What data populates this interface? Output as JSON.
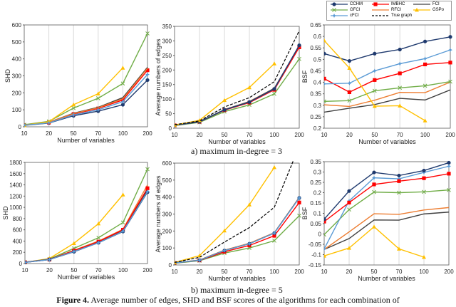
{
  "legend": [
    {
      "name": "CCHM",
      "color": "#1f3a6e",
      "marker": "circle",
      "dash": false
    },
    {
      "name": "IMBHC",
      "color": "#ff0000",
      "marker": "square",
      "dash": false
    },
    {
      "name": "FCI",
      "color": "#404040",
      "marker": "none",
      "dash": false
    },
    {
      "name": "GFCI",
      "color": "#70ad47",
      "marker": "x",
      "dash": false
    },
    {
      "name": "RFCI",
      "color": "#ed7d31",
      "marker": "none",
      "dash": false
    },
    {
      "name": "GSPo",
      "color": "#ffc000",
      "marker": "triangle",
      "dash": false
    },
    {
      "name": "cFCI",
      "color": "#5b9bd5",
      "marker": "star",
      "dash": false
    },
    {
      "name": "True graph",
      "color": "#000000",
      "marker": "none",
      "dash": true
    }
  ],
  "subcaptions": {
    "a": "a)     maximum in-degree = 3",
    "b": "b)     maximum in-degree = 5"
  },
  "caption": {
    "label": "Figure 4.",
    "text": " Average number of edges, SHD and BSF scores of the algorithms for each combination of"
  },
  "chart_data": [
    {
      "type": "line",
      "panel": "a",
      "xlabel": "Number of variables",
      "ylabel": "SHD",
      "categories": [
        "10",
        "20",
        "50",
        "70",
        "100",
        "200"
      ],
      "ylim": [
        0,
        600
      ],
      "yticks": [
        "0",
        "100",
        "200",
        "300",
        "400",
        "500",
        "600"
      ],
      "grid": "vertical",
      "series": [
        {
          "name": "CCHM",
          "values": [
            8,
            22,
            65,
            92,
            130,
            275
          ]
        },
        {
          "name": "IMBHC",
          "values": [
            10,
            25,
            75,
            108,
            158,
            333
          ]
        },
        {
          "name": "FCI",
          "values": [
            10,
            27,
            80,
            115,
            172,
            350
          ]
        },
        {
          "name": "GFCI",
          "values": [
            12,
            32,
            110,
            168,
            255,
            550
          ]
        },
        {
          "name": "RFCI",
          "values": [
            10,
            27,
            78,
            112,
            165,
            345
          ]
        },
        {
          "name": "GSPo",
          "values": [
            8,
            30,
            130,
            195,
            347,
            null
          ]
        },
        {
          "name": "cFCI",
          "values": [
            9,
            23,
            70,
            100,
            148,
            308
          ]
        }
      ]
    },
    {
      "type": "line",
      "panel": "a",
      "xlabel": "Number of variables",
      "ylabel": "Average numbers of edges",
      "categories": [
        "10",
        "20",
        "50",
        "70",
        "100",
        "200"
      ],
      "ylim": [
        0,
        350
      ],
      "yticks": [
        "0",
        "50",
        "100",
        "150",
        "200",
        "250",
        "300",
        "350"
      ],
      "grid": "vertical",
      "series": [
        {
          "name": "GFCI",
          "values": [
            9,
            20,
            57,
            80,
            118,
            238
          ]
        },
        {
          "name": "RFCI",
          "values": [
            11,
            22,
            64,
            92,
            137,
            283
          ]
        },
        {
          "name": "FCI",
          "values": [
            11,
            23,
            64,
            91,
            137,
            283
          ]
        },
        {
          "name": "IMBHC",
          "values": [
            10,
            22,
            62,
            88,
            132,
            278
          ]
        },
        {
          "name": "cFCI",
          "values": [
            10,
            22,
            63,
            90,
            135,
            285
          ]
        },
        {
          "name": "CCHM",
          "values": [
            10,
            22,
            63,
            90,
            135,
            285
          ]
        },
        {
          "name": "GSPo",
          "values": [
            11,
            27,
            96,
            140,
            222,
            null
          ]
        },
        {
          "name": "True graph",
          "values": [
            12,
            25,
            73,
            105,
            160,
            335
          ]
        }
      ]
    },
    {
      "type": "line",
      "panel": "a",
      "xlabel": "Number of variables",
      "ylabel": "BSF",
      "categories": [
        "10",
        "20",
        "50",
        "70",
        "100",
        "200"
      ],
      "ylim": [
        0.2,
        0.65
      ],
      "yticks": [
        "0.2",
        "0.25",
        "0.3",
        "0.35",
        "0.4",
        "0.45",
        "0.5",
        "0.55",
        "0.6",
        "0.65"
      ],
      "grid": "vertical",
      "series": [
        {
          "name": "FCI",
          "values": [
            0.27,
            0.287,
            0.303,
            0.33,
            0.323,
            0.367
          ]
        },
        {
          "name": "RFCI",
          "values": [
            0.302,
            0.295,
            0.322,
            0.356,
            0.355,
            0.401
          ]
        },
        {
          "name": "GFCI",
          "values": [
            0.317,
            0.32,
            0.363,
            0.376,
            0.385,
            0.403
          ]
        },
        {
          "name": "IMBHC",
          "values": [
            0.416,
            0.357,
            0.41,
            0.439,
            0.478,
            0.486
          ]
        },
        {
          "name": "cFCI",
          "values": [
            0.393,
            0.396,
            0.45,
            0.481,
            0.503,
            0.541
          ]
        },
        {
          "name": "CCHM",
          "values": [
            0.525,
            0.493,
            0.525,
            0.543,
            0.578,
            0.598
          ]
        },
        {
          "name": "GSPo",
          "values": [
            0.582,
            0.462,
            0.296,
            0.298,
            0.233,
            null
          ]
        }
      ]
    },
    {
      "type": "line",
      "panel": "b",
      "xlabel": "Number of variables",
      "ylabel": "SHD",
      "categories": [
        "10",
        "20",
        "50",
        "70",
        "100",
        "200"
      ],
      "ylim": [
        0,
        1800
      ],
      "yticks": [
        "0",
        "200",
        "400",
        "600",
        "800",
        "1000",
        "1200",
        "1400",
        "1600",
        "1800"
      ],
      "grid": "vertical",
      "series": [
        {
          "name": "GSPo",
          "values": [
            20,
            90,
            360,
            710,
            1225,
            null
          ]
        },
        {
          "name": "GFCI",
          "values": [
            25,
            80,
            270,
            460,
            730,
            1680
          ]
        },
        {
          "name": "RFCI",
          "values": [
            25,
            75,
            235,
            400,
            610,
            1400
          ]
        },
        {
          "name": "FCI",
          "values": [
            25,
            75,
            225,
            385,
            590,
            1310
          ]
        },
        {
          "name": "IMBHC",
          "values": [
            22,
            70,
            230,
            390,
            600,
            1340
          ]
        },
        {
          "name": "CCHM",
          "values": [
            20,
            70,
            210,
            370,
            570,
            1270
          ]
        },
        {
          "name": "cFCI",
          "values": [
            20,
            70,
            215,
            370,
            575,
            1280
          ]
        }
      ]
    },
    {
      "type": "line",
      "panel": "b",
      "xlabel": "Number of variables",
      "ylabel": "Average numbers of edges",
      "categories": [
        "10",
        "20",
        "50",
        "70",
        "100",
        "200"
      ],
      "ylim": [
        0,
        600
      ],
      "yticks": [
        "0",
        "100",
        "200",
        "300",
        "400",
        "500",
        "600"
      ],
      "grid": "vertical",
      "series": [
        {
          "name": "GFCI",
          "values": [
            10,
            25,
            70,
            100,
            143,
            290
          ]
        },
        {
          "name": "IMBHC",
          "values": [
            12,
            27,
            78,
            115,
            172,
            368
          ]
        },
        {
          "name": "FCI",
          "values": [
            13,
            29,
            87,
            127,
            190,
            398
          ]
        },
        {
          "name": "RFCI",
          "values": [
            13,
            29,
            87,
            128,
            190,
            398
          ]
        },
        {
          "name": "CCHM",
          "values": [
            12,
            28,
            85,
            125,
            188,
            395
          ]
        },
        {
          "name": "cFCI",
          "values": [
            12,
            28,
            85,
            125,
            188,
            395
          ]
        },
        {
          "name": "GSPo",
          "values": [
            15,
            55,
            202,
            355,
            575,
            null
          ]
        },
        {
          "name": "True graph",
          "values": [
            15,
            45,
            135,
            220,
            340,
            700
          ]
        }
      ]
    },
    {
      "type": "line",
      "panel": "b",
      "xlabel": "Number of variables",
      "ylabel": "BSF",
      "categories": [
        "10",
        "20",
        "50",
        "70",
        "100",
        "200"
      ],
      "ylim": [
        -0.15,
        0.35
      ],
      "yticks": [
        "-0.15",
        "-0.1",
        "-0.05",
        "0",
        "0.05",
        "0.1",
        "0.15",
        "0.2",
        "0.25",
        "0.3",
        "0.35"
      ],
      "grid": "vertical",
      "series": [
        {
          "name": "GSPo",
          "values": [
            -0.106,
            -0.068,
            0.035,
            -0.072,
            -0.112,
            null
          ]
        },
        {
          "name": "FCI",
          "values": [
            -0.075,
            -0.022,
            0.068,
            0.067,
            0.097,
            0.106
          ]
        },
        {
          "name": "RFCI",
          "values": [
            -0.075,
            0.01,
            0.098,
            0.095,
            0.116,
            0.128
          ]
        },
        {
          "name": "GFCI",
          "values": [
            -0.003,
            0.118,
            0.203,
            0.2,
            0.204,
            0.213
          ]
        },
        {
          "name": "cFCI",
          "values": [
            -0.072,
            0.16,
            0.272,
            0.267,
            0.298,
            0.328
          ]
        },
        {
          "name": "IMBHC",
          "values": [
            0.06,
            0.152,
            0.24,
            0.256,
            0.27,
            0.292
          ]
        },
        {
          "name": "CCHM",
          "values": [
            0.072,
            0.208,
            0.298,
            0.283,
            0.307,
            0.345
          ]
        }
      ]
    }
  ]
}
